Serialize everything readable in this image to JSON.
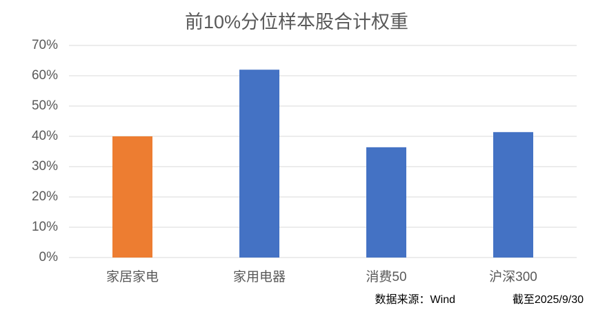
{
  "chart_data": {
    "type": "bar",
    "title": "前10%分位样本股合计权重",
    "categories": [
      "家居家电",
      "家用电器",
      "消费50",
      "沪深300"
    ],
    "values": [
      40,
      62,
      36.4,
      41.4
    ],
    "colors": [
      "#ed7d31",
      "#4472c4",
      "#4472c4",
      "#4472c4"
    ],
    "ylim": [
      0,
      70
    ],
    "yticks": [
      {
        "value": 0,
        "label": "0%"
      },
      {
        "value": 10,
        "label": "10%"
      },
      {
        "value": 20,
        "label": "20%"
      },
      {
        "value": 30,
        "label": "30%"
      },
      {
        "value": 40,
        "label": "40%"
      },
      {
        "value": 50,
        "label": "50%"
      },
      {
        "value": 60,
        "label": "60%"
      },
      {
        "value": 70,
        "label": "70%"
      }
    ],
    "grid": true,
    "source": "数据来源：Wind",
    "date": "截至2025/9/30"
  }
}
